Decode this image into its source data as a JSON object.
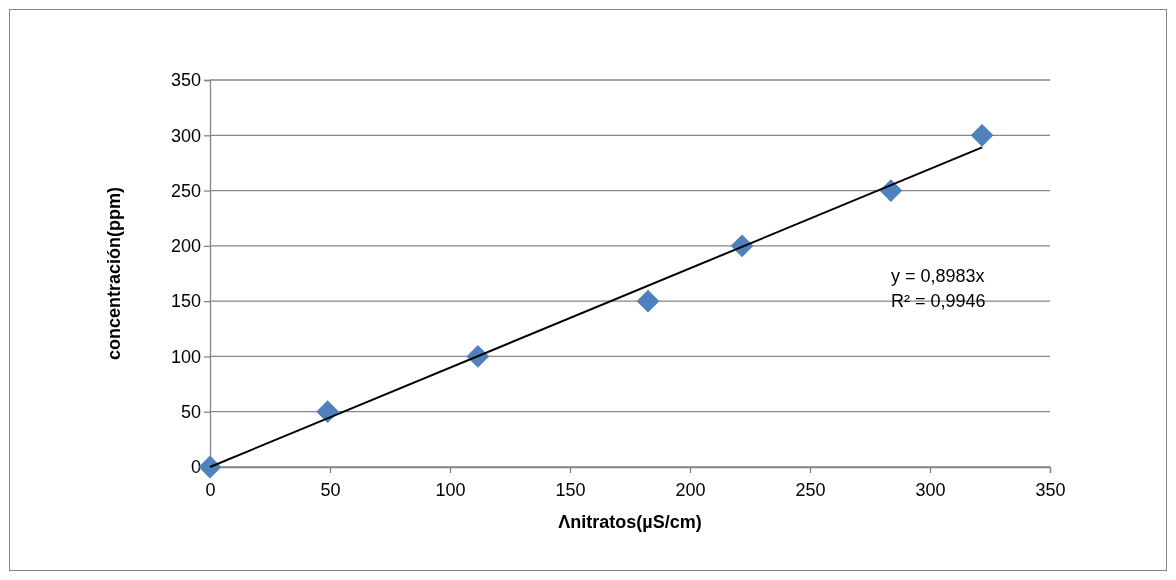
{
  "chart_data": {
    "type": "scatter",
    "xlabel": "Λnitratos(µS/cm)",
    "ylabel": "concentración(ppm)",
    "xlim": [
      0,
      350
    ],
    "xticks": [
      0,
      50,
      100,
      150,
      200,
      250,
      300,
      350
    ],
    "ylim": [
      0,
      350
    ],
    "yticks": [
      0,
      50,
      100,
      150,
      200,
      250,
      300,
      350
    ],
    "grid": "y",
    "marker": "diamond",
    "annotations": [
      "y = 0,8983x",
      "R² = 0,9946"
    ],
    "series": [
      {
        "type": "scatter",
        "color": "#4f81bd",
        "x": [
          0,
          49,
          111.6,
          182.5,
          221.7,
          283.7,
          321.7
        ],
        "values": [
          0,
          50,
          100,
          150,
          200,
          250,
          300
        ]
      },
      {
        "type": "line",
        "color": "#000000",
        "x": [
          0,
          321.7
        ],
        "values": [
          0,
          289
        ],
        "marker": "none",
        "line_style": "solid"
      }
    ]
  }
}
